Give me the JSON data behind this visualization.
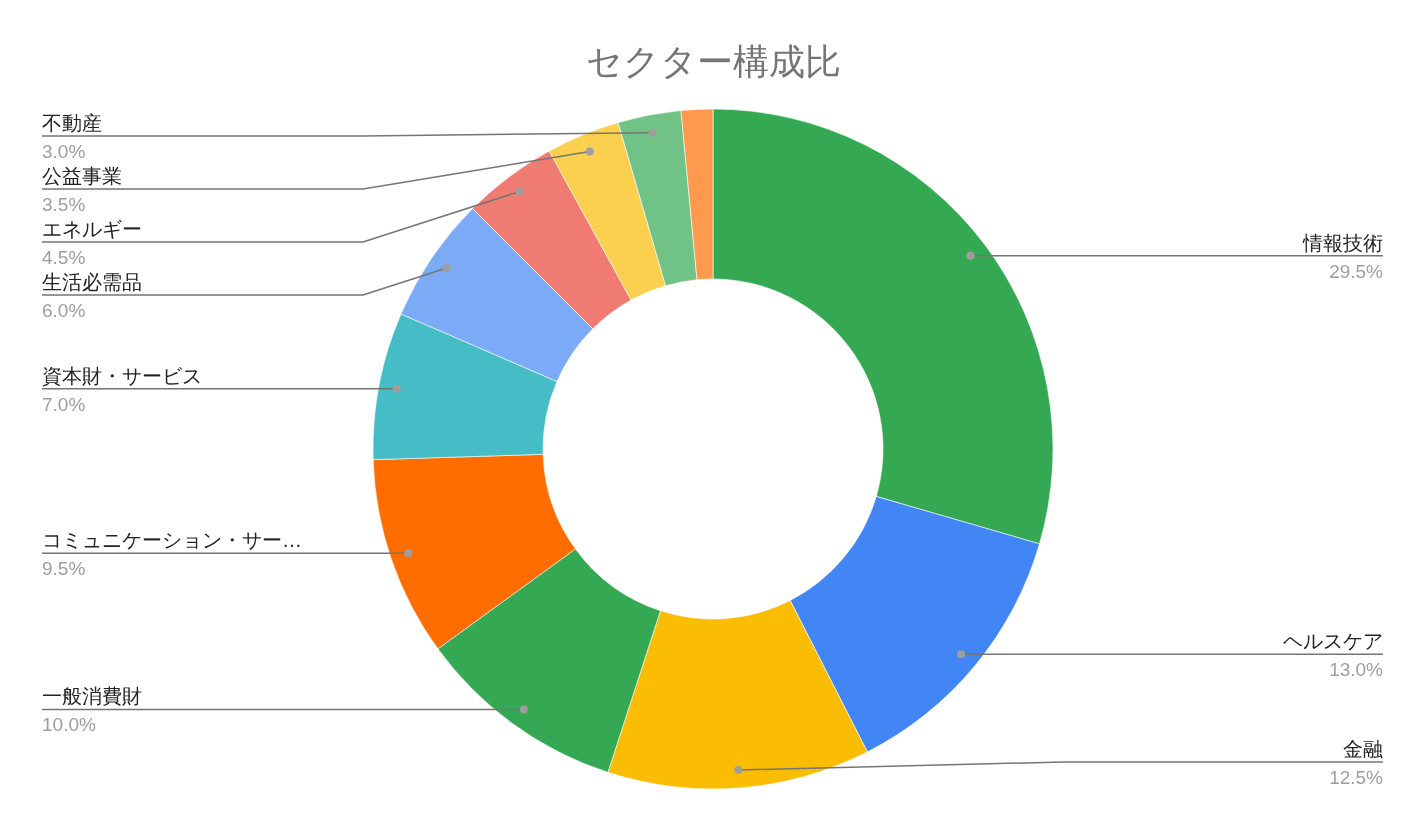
{
  "chart_data": {
    "type": "donut",
    "title": "セクター構成比",
    "categories": [
      "情報技術",
      "ヘルスケア",
      "金融",
      "一般消費財",
      "コミュニケーション・サー…",
      "資本財・サービス",
      "生活必需品",
      "エネルギー",
      "公益事業",
      "不動産",
      null
    ],
    "values": [
      29.5,
      13.0,
      12.5,
      10.0,
      9.5,
      7.0,
      6.0,
      4.5,
      3.5,
      3.0,
      1.5
    ],
    "colors": [
      "#34a853",
      "#4285f4",
      "#fbbc04",
      "#34a853",
      "#ff6d01",
      "#46bdc6",
      "#7baaf7",
      "#f07b72",
      "#fcd04f",
      "#71c287",
      "#ff994d"
    ],
    "value_labels": [
      "29.5%",
      "13.0%",
      "12.5%",
      "10.0%",
      "9.5%",
      "7.0%",
      "6.0%",
      "4.5%",
      "3.5%",
      "3.0%",
      null
    ]
  }
}
